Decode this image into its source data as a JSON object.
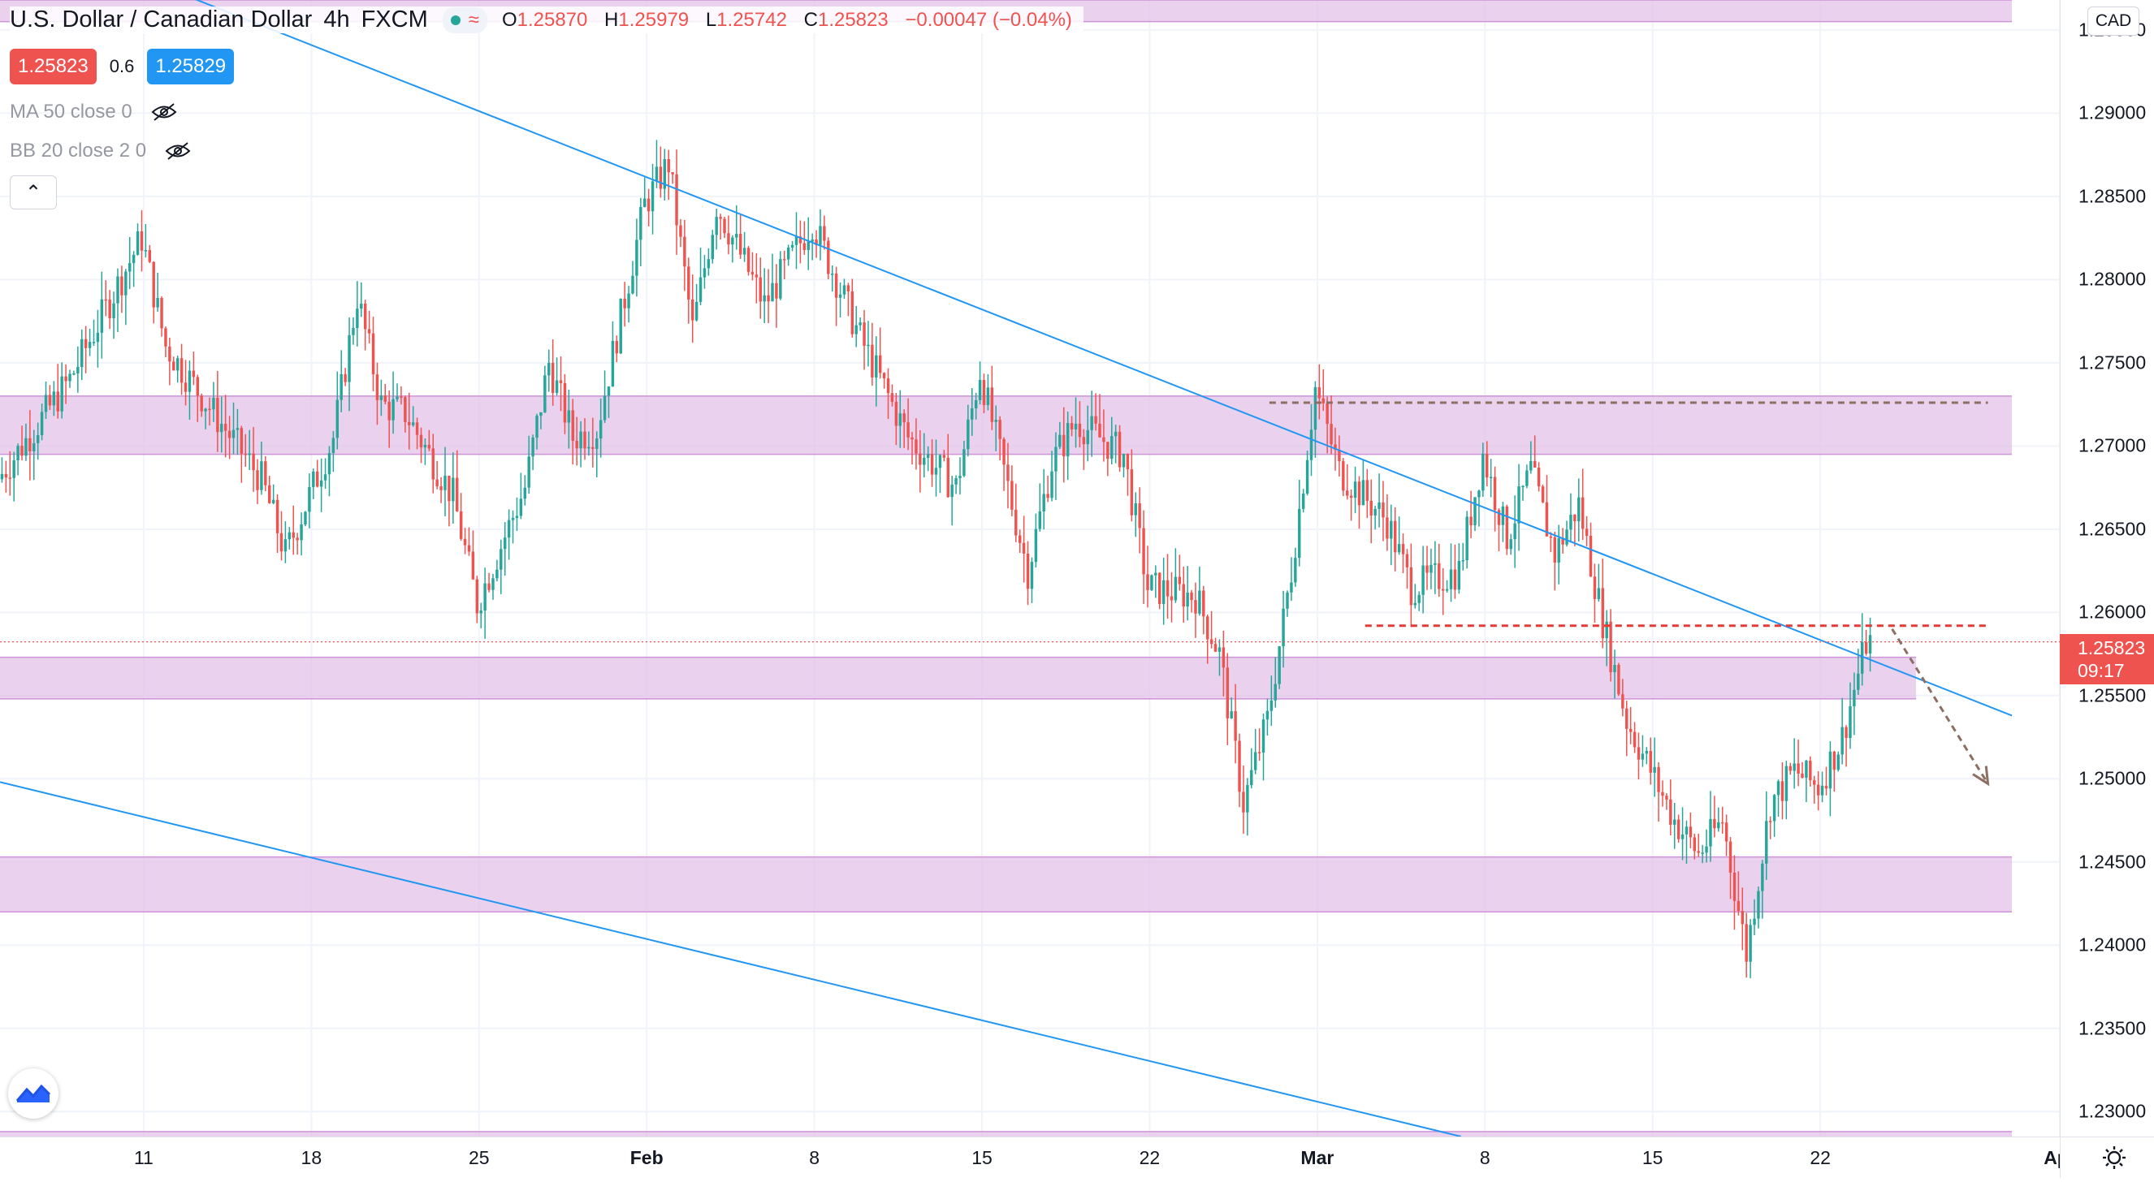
{
  "header": {
    "symbol_title": "U.S. Dollar / Canadian Dollar",
    "interval": "4h",
    "exchange": "FXCM",
    "status_icon": "market-open-dot",
    "status_wave": "≈",
    "ohlc": {
      "o_label": "O",
      "o_value": "1.25870",
      "h_label": "H",
      "h_value": "1.25979",
      "l_label": "L",
      "l_value": "1.25742",
      "c_label": "C",
      "c_value": "1.25823",
      "change": "−0.00047 (−0.04%)"
    }
  },
  "trade": {
    "sell_price": "1.25823",
    "spread": "0.6",
    "buy_price": "1.25829"
  },
  "indicators": [
    {
      "label": "MA 50 close 0",
      "icon": "eye-hidden-icon"
    },
    {
      "label": "BB 20 close 2 0",
      "icon": "eye-hidden-icon"
    }
  ],
  "collapse_icon": "chevron-up-icon",
  "currency_badge": "CAD",
  "current_price": {
    "price": "1.25823",
    "countdown": "09:17"
  },
  "colors": {
    "up": "#26a69a",
    "down": "#ef5350",
    "zone": "#e1bee7",
    "trendline": "#2196f3",
    "resistance_dashed": "#8d6e63",
    "support_dashed": "#e53935",
    "arrow": "#8d6e63"
  },
  "chart_data": {
    "type": "candlestick",
    "instrument": "USD/CAD",
    "timeframe": "4h",
    "y_axis": {
      "ticks": [
        "1.29500",
        "1.29000",
        "1.28500",
        "1.28000",
        "1.27500",
        "1.27000",
        "1.26500",
        "1.26000",
        "1.25500",
        "1.25000",
        "1.24500",
        "1.24000",
        "1.23500",
        "1.23000"
      ],
      "range": [
        1.2285,
        1.2968
      ]
    },
    "x_axis": {
      "ticks": [
        {
          "label": "11",
          "bold": false
        },
        {
          "label": "18",
          "bold": false
        },
        {
          "label": "25",
          "bold": false
        },
        {
          "label": "Feb",
          "bold": true
        },
        {
          "label": "8",
          "bold": false
        },
        {
          "label": "15",
          "bold": false
        },
        {
          "label": "22",
          "bold": false
        },
        {
          "label": "Mar",
          "bold": true
        },
        {
          "label": "8",
          "bold": false
        },
        {
          "label": "15",
          "bold": false
        },
        {
          "label": "22",
          "bold": false
        },
        {
          "label": "Apr",
          "bold": true
        }
      ],
      "range": [
        "2021-01-05",
        "2021-04-01"
      ]
    },
    "price_anchors": [
      {
        "date": "2021-01-05",
        "price": 1.268
      },
      {
        "date": "2021-01-08",
        "price": 1.274
      },
      {
        "date": "2021-01-11",
        "price": 1.2825
      },
      {
        "date": "2021-01-12",
        "price": 1.276
      },
      {
        "date": "2021-01-14",
        "price": 1.272
      },
      {
        "date": "2021-01-16",
        "price": 1.268
      },
      {
        "date": "2021-01-17",
        "price": 1.2635
      },
      {
        "date": "2021-01-19",
        "price": 1.2705
      },
      {
        "date": "2021-01-20",
        "price": 1.279
      },
      {
        "date": "2021-01-21",
        "price": 1.2725
      },
      {
        "date": "2021-01-22",
        "price": 1.272
      },
      {
        "date": "2021-01-24",
        "price": 1.267
      },
      {
        "date": "2021-01-25",
        "price": 1.2605
      },
      {
        "date": "2021-01-27",
        "price": 1.2675
      },
      {
        "date": "2021-01-28",
        "price": 1.275
      },
      {
        "date": "2021-01-29",
        "price": 1.2705
      },
      {
        "date": "2021-01-30",
        "price": 1.271
      },
      {
        "date": "2021-02-01",
        "price": 1.2845
      },
      {
        "date": "2021-02-02",
        "price": 1.287
      },
      {
        "date": "2021-02-03",
        "price": 1.277
      },
      {
        "date": "2021-02-04",
        "price": 1.2845
      },
      {
        "date": "2021-02-06",
        "price": 1.2785
      },
      {
        "date": "2021-02-08",
        "price": 1.2835
      },
      {
        "date": "2021-02-10",
        "price": 1.2765
      },
      {
        "date": "2021-02-12",
        "price": 1.2705
      },
      {
        "date": "2021-02-14",
        "price": 1.2675
      },
      {
        "date": "2021-02-15",
        "price": 1.2745
      },
      {
        "date": "2021-02-17",
        "price": 1.2625
      },
      {
        "date": "2021-02-18",
        "price": 1.269
      },
      {
        "date": "2021-02-19",
        "price": 1.2715
      },
      {
        "date": "2021-02-21",
        "price": 1.2695
      },
      {
        "date": "2021-02-22",
        "price": 1.2615
      },
      {
        "date": "2021-02-24",
        "price": 1.261
      },
      {
        "date": "2021-02-25",
        "price": 1.2575
      },
      {
        "date": "2021-02-26",
        "price": 1.2485
      },
      {
        "date": "2021-02-27",
        "price": 1.2535
      },
      {
        "date": "2021-02-28",
        "price": 1.2625
      },
      {
        "date": "2021-03-01",
        "price": 1.2735
      },
      {
        "date": "2021-03-02",
        "price": 1.2685
      },
      {
        "date": "2021-03-04",
        "price": 1.2655
      },
      {
        "date": "2021-03-05",
        "price": 1.2615
      },
      {
        "date": "2021-03-07",
        "price": 1.2625
      },
      {
        "date": "2021-03-08",
        "price": 1.2695
      },
      {
        "date": "2021-03-09",
        "price": 1.2645
      },
      {
        "date": "2021-03-10",
        "price": 1.2685
      },
      {
        "date": "2021-03-11",
        "price": 1.2635
      },
      {
        "date": "2021-03-12",
        "price": 1.2665
      },
      {
        "date": "2021-03-13",
        "price": 1.2595
      },
      {
        "date": "2021-03-14",
        "price": 1.2535
      },
      {
        "date": "2021-03-15",
        "price": 1.2505
      },
      {
        "date": "2021-03-16",
        "price": 1.2475
      },
      {
        "date": "2021-03-17",
        "price": 1.2455
      },
      {
        "date": "2021-03-18",
        "price": 1.2475
      },
      {
        "date": "2021-03-19",
        "price": 1.2395
      },
      {
        "date": "2021-03-20",
        "price": 1.2485
      },
      {
        "date": "2021-03-21",
        "price": 1.2505
      },
      {
        "date": "2021-03-22",
        "price": 1.2495
      },
      {
        "date": "2021-03-23",
        "price": 1.2525
      },
      {
        "date": "2021-03-24",
        "price": 1.2582
      }
    ],
    "zones": [
      {
        "low": 1.2955,
        "high": 1.2968,
        "from": "2021-01-05",
        "to": "2021-03-30"
      },
      {
        "low": 1.2695,
        "high": 1.273,
        "from": "2021-01-05",
        "to": "2021-03-30"
      },
      {
        "low": 1.2548,
        "high": 1.2573,
        "from": "2021-01-05",
        "to": "2021-03-26"
      },
      {
        "low": 1.242,
        "high": 1.2453,
        "from": "2021-01-05",
        "to": "2021-03-30"
      },
      {
        "low": 1.2283,
        "high": 1.2288,
        "from": "2021-01-05",
        "to": "2021-03-30"
      }
    ],
    "trendlines": [
      {
        "from": [
          "2021-01-12",
          1.2975
        ],
        "to": [
          "2021-03-30",
          1.2538
        ]
      },
      {
        "from": [
          "2021-01-05",
          1.2498
        ],
        "to": [
          "2021-03-07",
          1.2285
        ]
      }
    ],
    "horizontal_levels": [
      {
        "price": 1.2726,
        "from": "2021-02-27",
        "to": "2021-03-29",
        "style": "dashed",
        "role": "resistance"
      },
      {
        "price": 1.2592,
        "from": "2021-03-03",
        "to": "2021-03-29",
        "style": "dashed",
        "role": "support"
      }
    ],
    "current_price_line": 1.25823,
    "projection_arrow": {
      "from": [
        "2021-03-25",
        1.259
      ],
      "to": [
        "2021-03-29",
        1.2497
      ]
    },
    "grid": true
  }
}
